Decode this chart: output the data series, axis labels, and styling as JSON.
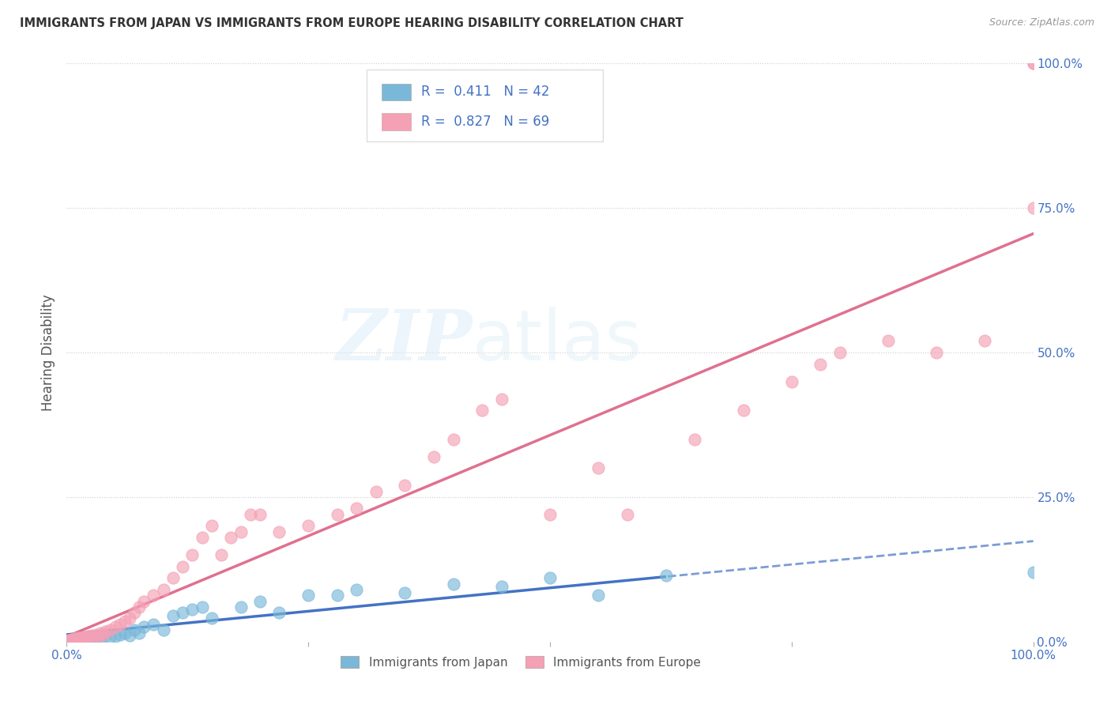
{
  "title": "IMMIGRANTS FROM JAPAN VS IMMIGRANTS FROM EUROPE HEARING DISABILITY CORRELATION CHART",
  "source": "Source: ZipAtlas.com",
  "ylabel": "Hearing Disability",
  "ytick_values": [
    0,
    25,
    50,
    75,
    100
  ],
  "legend_label1": "Immigrants from Japan",
  "legend_label2": "Immigrants from Europe",
  "R1": "0.411",
  "N1": "42",
  "R2": "0.827",
  "N2": "69",
  "color_japan": "#7ab8d9",
  "color_europe": "#f4a0b5",
  "color_japan_line": "#4472c4",
  "color_europe_line": "#e07090",
  "watermark_zip": "ZIP",
  "watermark_atlas": "atlas",
  "background_color": "#ffffff",
  "japan_x": [
    0.3,
    0.5,
    0.7,
    0.8,
    1.0,
    1.2,
    1.5,
    1.8,
    2.0,
    2.2,
    2.5,
    3.0,
    3.5,
    4.0,
    4.5,
    5.0,
    5.5,
    6.0,
    6.5,
    7.0,
    7.5,
    8.0,
    9.0,
    10.0,
    11.0,
    12.0,
    13.0,
    14.0,
    15.0,
    18.0,
    20.0,
    22.0,
    25.0,
    28.0,
    30.0,
    35.0,
    40.0,
    45.0,
    50.0,
    55.0,
    62.0,
    100.0
  ],
  "japan_y": [
    0.2,
    0.3,
    0.1,
    0.5,
    0.4,
    0.3,
    0.6,
    0.5,
    0.8,
    0.4,
    0.7,
    0.5,
    0.8,
    1.0,
    0.6,
    0.9,
    1.2,
    1.5,
    1.0,
    2.0,
    1.5,
    2.5,
    3.0,
    2.0,
    4.5,
    5.0,
    5.5,
    6.0,
    4.0,
    6.0,
    7.0,
    5.0,
    8.0,
    8.0,
    9.0,
    8.5,
    10.0,
    9.5,
    11.0,
    8.0,
    11.5,
    12.0
  ],
  "europe_x": [
    0.1,
    0.2,
    0.3,
    0.4,
    0.5,
    0.6,
    0.7,
    0.8,
    0.9,
    1.0,
    1.1,
    1.2,
    1.4,
    1.5,
    1.6,
    1.8,
    2.0,
    2.2,
    2.5,
    2.8,
    3.0,
    3.2,
    3.5,
    3.8,
    4.0,
    4.5,
    5.0,
    5.5,
    6.0,
    6.5,
    7.0,
    7.5,
    8.0,
    9.0,
    10.0,
    11.0,
    12.0,
    13.0,
    14.0,
    15.0,
    16.0,
    17.0,
    18.0,
    19.0,
    20.0,
    22.0,
    25.0,
    28.0,
    30.0,
    32.0,
    35.0,
    38.0,
    40.0,
    43.0,
    45.0,
    50.0,
    55.0,
    58.0,
    65.0,
    70.0,
    75.0,
    78.0,
    80.0,
    85.0,
    90.0,
    95.0,
    100.0,
    100.0,
    100.0
  ],
  "europe_y": [
    0.1,
    0.2,
    0.2,
    0.3,
    0.3,
    0.4,
    0.2,
    0.5,
    0.3,
    0.4,
    0.5,
    0.6,
    0.4,
    0.7,
    0.5,
    0.8,
    0.6,
    0.9,
    1.0,
    0.8,
    1.2,
    1.0,
    1.5,
    1.2,
    1.8,
    2.0,
    2.5,
    3.0,
    3.5,
    4.0,
    5.0,
    6.0,
    7.0,
    8.0,
    9.0,
    11.0,
    13.0,
    15.0,
    18.0,
    20.0,
    15.0,
    18.0,
    19.0,
    22.0,
    22.0,
    19.0,
    20.0,
    22.0,
    23.0,
    26.0,
    27.0,
    32.0,
    35.0,
    40.0,
    42.0,
    22.0,
    30.0,
    22.0,
    35.0,
    40.0,
    45.0,
    48.0,
    50.0,
    52.0,
    50.0,
    52.0,
    100.0,
    75.0,
    100.0
  ]
}
